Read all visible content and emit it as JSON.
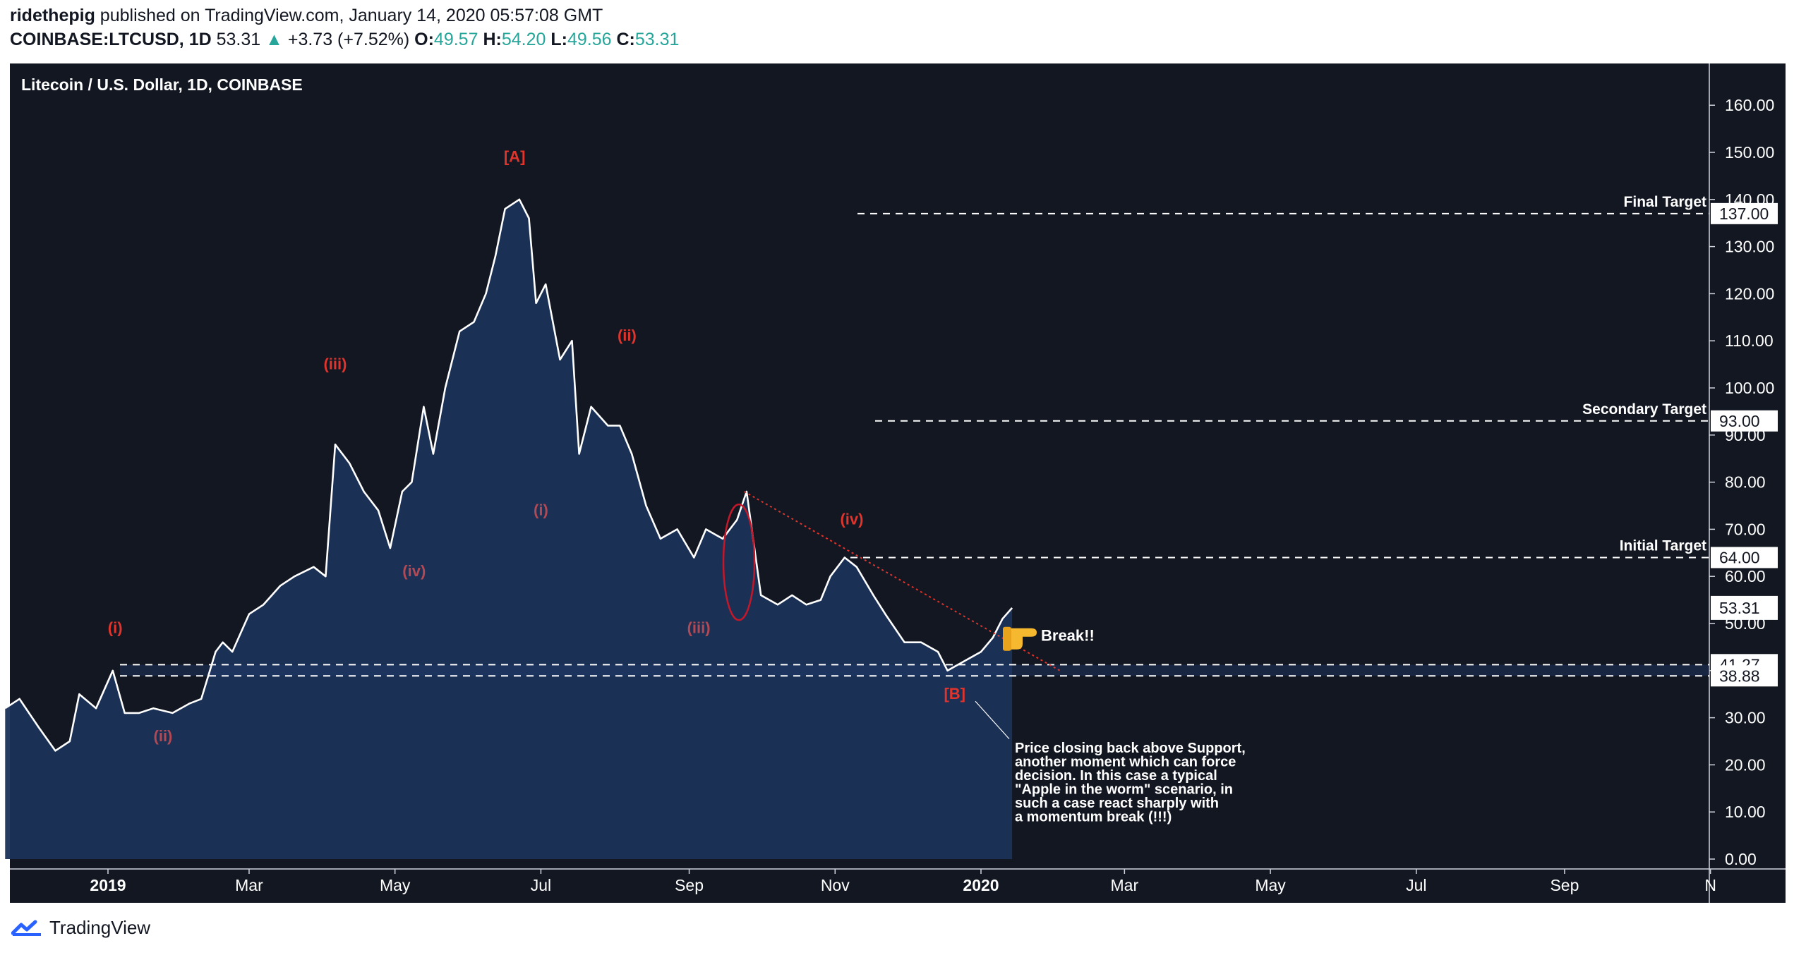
{
  "header": {
    "author": "ridethepig",
    "published_text": "published on TradingView.com, January 14, 2020 05:57:08 GMT",
    "symbol": "COINBASE:LTCUSD, 1D",
    "last": "53.31",
    "change_arrow": "▲",
    "change": "+3.73 (+7.52%)",
    "o_label": "O:",
    "o_value": "49.57",
    "h_label": "H:",
    "h_value": "54.20",
    "l_label": "L:",
    "l_value": "49.56",
    "c_label": "C:",
    "c_value": "53.31"
  },
  "footer": {
    "brand": "TradingView",
    "logo_icon": "tradingview-logo-icon"
  },
  "colors": {
    "background": "#131722",
    "area_fill": "#1a3158",
    "price_line": "#ffffff",
    "wave_red": "#e0342c",
    "wave_dim": "#b24a55",
    "up": "#26a69a"
  },
  "chart_data": {
    "type": "line",
    "title": "Litecoin / U.S. Dollar, 1D, COINBASE",
    "y_ticks": [
      "0.00",
      "10.00",
      "20.00",
      "30.00",
      "40.00",
      "50.00",
      "60.00",
      "70.00",
      "80.00",
      "90.00",
      "100.00",
      "110.00",
      "120.00",
      "130.00",
      "140.00",
      "150.00",
      "160.00"
    ],
    "x_ticks": [
      "2019",
      "Mar",
      "May",
      "Jul",
      "Sep",
      "Nov",
      "2020",
      "Mar",
      "May",
      "Jul",
      "Sep",
      "N"
    ],
    "ylim": [
      0,
      164
    ],
    "series": [
      {
        "x": [
          "2018-11-19",
          "2018-11-25",
          "2018-12-03",
          "2018-12-10",
          "2018-12-16",
          "2018-12-20",
          "2018-12-27",
          "2019-01-03",
          "2019-01-08",
          "2019-01-14",
          "2019-01-20",
          "2019-01-28",
          "2019-02-04",
          "2019-02-09",
          "2019-02-15",
          "2019-02-18",
          "2019-02-22",
          "2019-03-01",
          "2019-03-07",
          "2019-03-14",
          "2019-03-20",
          "2019-03-28",
          "2019-04-02",
          "2019-04-06",
          "2019-04-12",
          "2019-04-18",
          "2019-04-24",
          "2019-04-29",
          "2019-05-04",
          "2019-05-08",
          "2019-05-13",
          "2019-05-17",
          "2019-05-22",
          "2019-05-28",
          "2019-06-03",
          "2019-06-08",
          "2019-06-12",
          "2019-06-16",
          "2019-06-22",
          "2019-06-26",
          "2019-06-29",
          "2019-07-03",
          "2019-07-09",
          "2019-07-14",
          "2019-07-17",
          "2019-07-22",
          "2019-07-29",
          "2019-08-03",
          "2019-08-08",
          "2019-08-14",
          "2019-08-20",
          "2019-08-27",
          "2019-09-03",
          "2019-09-08",
          "2019-09-15",
          "2019-09-21",
          "2019-09-25",
          "2019-10-01",
          "2019-10-08",
          "2019-10-14",
          "2019-10-20",
          "2019-10-26",
          "2019-10-30",
          "2019-11-05",
          "2019-11-10",
          "2019-11-17",
          "2019-11-22",
          "2019-11-30",
          "2019-12-07",
          "2019-12-14",
          "2019-12-18",
          "2019-12-25",
          "2020-01-01",
          "2020-01-06",
          "2020-01-10",
          "2020-01-14"
        ],
        "y": [
          32,
          34,
          28,
          23,
          25,
          35,
          32,
          40,
          31,
          31,
          32,
          31,
          33,
          34,
          44,
          46,
          44,
          52,
          54,
          58,
          60,
          62,
          60,
          88,
          84,
          78,
          74,
          66,
          78,
          80,
          96,
          86,
          100,
          112,
          114,
          120,
          128,
          138,
          140,
          136,
          118,
          122,
          106,
          110,
          86,
          96,
          92,
          92,
          86,
          75,
          68,
          70,
          64,
          70,
          68,
          72,
          78,
          56,
          54,
          56,
          54,
          55,
          60,
          64,
          62,
          56,
          52,
          46,
          46,
          44,
          40,
          42,
          44,
          47,
          51,
          53.31
        ]
      }
    ],
    "horizontal_levels": [
      {
        "label": "Final Target",
        "value": 137,
        "price_label": "137.00"
      },
      {
        "label": "Secondary Target",
        "value": 93,
        "price_label": "93.00"
      },
      {
        "label": "Initial Target",
        "value": 64,
        "price_label": "64.00"
      },
      {
        "label": "",
        "value": 41.27,
        "price_label": "41.27"
      },
      {
        "label": "",
        "value": 38.88,
        "price_label": "38.88"
      }
    ],
    "last_price_label": "53.31",
    "wave_labels": [
      {
        "text": "(i)",
        "date": "2019-01-04",
        "y": 48,
        "color": "red"
      },
      {
        "text": "(ii)",
        "date": "2019-01-24",
        "y": 25,
        "color": "dim"
      },
      {
        "text": "(iii)",
        "date": "2019-04-06",
        "y": 104,
        "color": "red"
      },
      {
        "text": "(iv)",
        "date": "2019-05-09",
        "y": 60,
        "color": "dim"
      },
      {
        "text": "[A]",
        "date": "2019-06-20",
        "y": 148,
        "color": "red"
      },
      {
        "text": "(i)",
        "date": "2019-07-01",
        "y": 73,
        "color": "dim"
      },
      {
        "text": "(ii)",
        "date": "2019-08-06",
        "y": 110,
        "color": "red"
      },
      {
        "text": "(iii)",
        "date": "2019-09-05",
        "y": 48,
        "color": "dim"
      },
      {
        "text": "(iv)",
        "date": "2019-11-08",
        "y": 71,
        "color": "red"
      },
      {
        "text": "[B]",
        "date": "2019-12-21",
        "y": 34,
        "color": "red"
      }
    ],
    "annotations": [
      {
        "text": "Break!!",
        "icon": "pointing-hand-icon"
      },
      {
        "text": "Price closing back above Support,\nanother moment which can force\ndecision. In this case a typical\n\"Apple in the worm\" scenario, in\nsuch a case react sharply with\na momentum break (!!!)"
      }
    ],
    "trendline": {
      "from": {
        "date": "2019-09-24",
        "y": 78
      },
      "to": {
        "date": "2020-02-03",
        "y": 40
      }
    },
    "grid": false
  }
}
